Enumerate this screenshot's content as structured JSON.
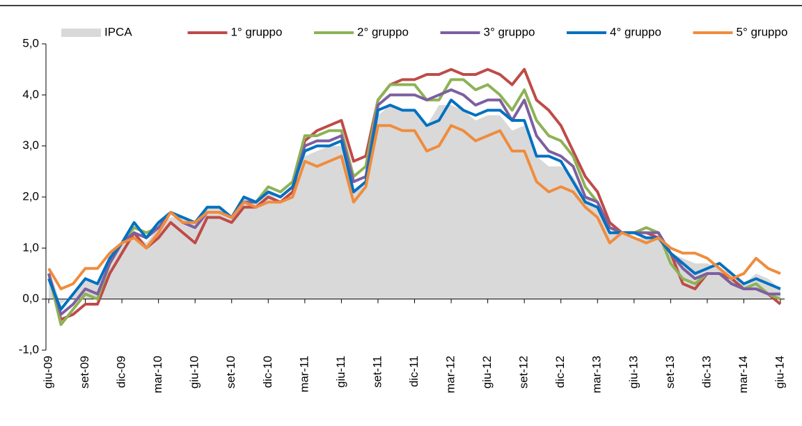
{
  "chart_data": {
    "type": "line",
    "categories": [
      "giu-09",
      null,
      null,
      "set-09",
      null,
      null,
      "dic-09",
      null,
      null,
      "mar-10",
      null,
      null,
      "giu-10",
      null,
      null,
      "set-10",
      null,
      null,
      "dic-10",
      null,
      null,
      "mar-11",
      null,
      null,
      "giu-11",
      null,
      null,
      "set-11",
      null,
      null,
      "dic-11",
      null,
      null,
      "mar-12",
      null,
      null,
      "giu-12",
      null,
      null,
      "set-12",
      null,
      null,
      "dic-12",
      null,
      null,
      "mar-13",
      null,
      null,
      "giu-13",
      null,
      null,
      "set-13",
      null,
      null,
      "dic-13",
      null,
      null,
      "mar-14",
      null,
      null,
      "giu-14"
    ],
    "series": [
      {
        "name": "IPCA",
        "color": "#d9d9d9",
        "area": true,
        "values": [
          0.6,
          -0.1,
          0.1,
          0.4,
          0.3,
          0.8,
          1.1,
          1.3,
          1.1,
          1.4,
          1.6,
          1.6,
          1.5,
          1.8,
          1.8,
          1.6,
          2.0,
          1.9,
          2.1,
          1.9,
          2.1,
          2.8,
          2.9,
          3.0,
          3.0,
          2.1,
          2.3,
          3.6,
          3.8,
          3.7,
          3.7,
          3.4,
          3.8,
          3.8,
          3.7,
          3.5,
          3.6,
          3.6,
          3.3,
          3.4,
          2.8,
          2.6,
          2.6,
          2.4,
          2.0,
          1.8,
          1.3,
          1.3,
          1.2,
          1.2,
          1.2,
          0.9,
          0.8,
          0.7,
          0.7,
          0.6,
          0.5,
          0.3,
          0.5,
          0.4,
          0.2
        ]
      },
      {
        "name": "1° gruppo",
        "color": "#be4b48",
        "values": [
          0.5,
          -0.4,
          -0.3,
          -0.1,
          -0.1,
          0.5,
          0.9,
          1.3,
          1.0,
          1.2,
          1.5,
          1.3,
          1.1,
          1.6,
          1.6,
          1.5,
          1.8,
          1.8,
          2.0,
          1.9,
          2.1,
          3.1,
          3.3,
          3.4,
          3.5,
          2.7,
          2.8,
          3.9,
          4.2,
          4.3,
          4.3,
          4.4,
          4.4,
          4.5,
          4.4,
          4.4,
          4.5,
          4.4,
          4.2,
          4.5,
          3.9,
          3.7,
          3.4,
          2.9,
          2.4,
          2.1,
          1.5,
          1.3,
          1.3,
          1.3,
          1.2,
          0.9,
          0.3,
          0.2,
          0.5,
          0.5,
          0.4,
          0.2,
          0.2,
          0.1,
          -0.1
        ]
      },
      {
        "name": "2° gruppo",
        "color": "#8db255",
        "values": [
          0.5,
          -0.5,
          -0.2,
          0.1,
          0.0,
          0.7,
          1.1,
          1.4,
          1.3,
          1.4,
          1.7,
          1.5,
          1.5,
          1.7,
          1.7,
          1.6,
          1.9,
          1.9,
          2.2,
          2.1,
          2.3,
          3.2,
          3.2,
          3.3,
          3.3,
          2.4,
          2.6,
          3.9,
          4.2,
          4.2,
          4.2,
          3.9,
          3.9,
          4.3,
          4.3,
          4.1,
          4.2,
          4.0,
          3.7,
          4.1,
          3.5,
          3.2,
          3.1,
          2.8,
          2.2,
          1.9,
          1.4,
          1.3,
          1.3,
          1.4,
          1.3,
          0.7,
          0.4,
          0.3,
          0.5,
          0.5,
          0.3,
          0.2,
          0.3,
          0.1,
          0.0
        ]
      },
      {
        "name": "3° gruppo",
        "color": "#7d5fa0",
        "values": [
          0.5,
          -0.3,
          -0.1,
          0.2,
          0.1,
          0.7,
          1.1,
          1.3,
          1.2,
          1.4,
          1.7,
          1.5,
          1.4,
          1.7,
          1.7,
          1.6,
          1.9,
          1.9,
          2.1,
          2.0,
          2.2,
          3.0,
          3.1,
          3.1,
          3.2,
          2.3,
          2.4,
          3.8,
          4.0,
          4.0,
          4.0,
          3.9,
          4.0,
          4.1,
          4.0,
          3.8,
          3.9,
          3.9,
          3.5,
          3.9,
          3.2,
          2.9,
          2.8,
          2.6,
          2.0,
          1.9,
          1.4,
          1.3,
          1.3,
          1.3,
          1.3,
          0.9,
          0.6,
          0.4,
          0.5,
          0.5,
          0.3,
          0.2,
          0.2,
          0.1,
          0.1
        ]
      },
      {
        "name": "4° gruppo",
        "color": "#0070c0",
        "values": [
          0.4,
          -0.2,
          0.1,
          0.4,
          0.3,
          0.8,
          1.1,
          1.5,
          1.2,
          1.5,
          1.7,
          1.6,
          1.5,
          1.8,
          1.8,
          1.6,
          2.0,
          1.9,
          2.1,
          2.0,
          2.2,
          2.9,
          3.0,
          3.0,
          3.1,
          2.1,
          2.3,
          3.7,
          3.8,
          3.7,
          3.7,
          3.4,
          3.5,
          3.9,
          3.7,
          3.6,
          3.7,
          3.7,
          3.5,
          3.5,
          2.8,
          2.8,
          2.7,
          2.3,
          1.9,
          1.8,
          1.3,
          1.3,
          1.3,
          1.2,
          1.2,
          0.9,
          0.7,
          0.5,
          0.6,
          0.7,
          0.5,
          0.3,
          0.4,
          0.3,
          0.2
        ]
      },
      {
        "name": "5° gruppo",
        "color": "#f08c3c",
        "values": [
          0.6,
          0.2,
          0.3,
          0.6,
          0.6,
          0.9,
          1.1,
          1.2,
          1.0,
          1.3,
          1.7,
          1.5,
          1.5,
          1.7,
          1.7,
          1.6,
          1.9,
          1.8,
          1.9,
          1.9,
          2.0,
          2.7,
          2.6,
          2.7,
          2.8,
          1.9,
          2.2,
          3.4,
          3.4,
          3.3,
          3.3,
          2.9,
          3.0,
          3.4,
          3.3,
          3.1,
          3.2,
          3.3,
          2.9,
          2.9,
          2.3,
          2.1,
          2.2,
          2.1,
          1.8,
          1.6,
          1.1,
          1.3,
          1.2,
          1.1,
          1.2,
          1.0,
          0.9,
          0.9,
          0.8,
          0.6,
          0.4,
          0.5,
          0.8,
          0.6,
          0.5
        ]
      }
    ],
    "ylim": [
      -1,
      5
    ],
    "yticks": [
      {
        "value": -1,
        "label": "-1,0"
      },
      {
        "value": 0,
        "label": "0,0"
      },
      {
        "value": 1,
        "label": "1,0"
      },
      {
        "value": 2,
        "label": "2,0"
      },
      {
        "value": 3,
        "label": "3,0"
      },
      {
        "value": 4,
        "label": "4,0"
      },
      {
        "value": 5,
        "label": "5,0"
      }
    ],
    "legend": "top"
  }
}
